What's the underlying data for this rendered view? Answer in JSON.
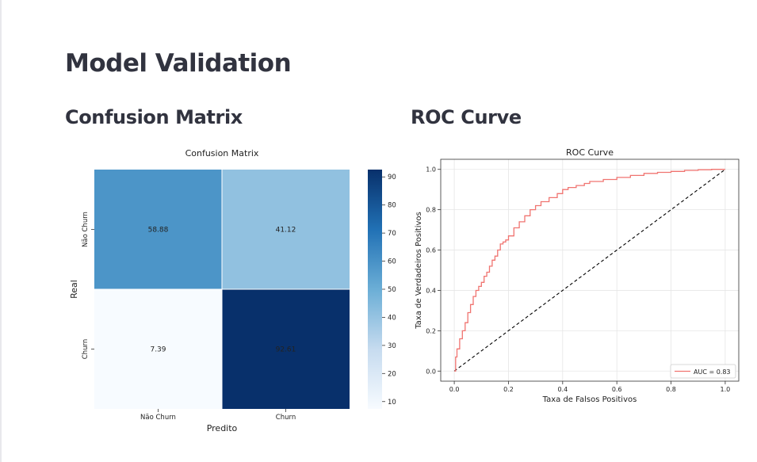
{
  "page": {
    "title": "Model Validation",
    "sections": {
      "confusion_matrix": "Confusion Matrix",
      "roc_curve": "ROC Curve"
    }
  },
  "colors": {
    "cm_low": "#f7fbff",
    "cm_high": "#08306b",
    "roc_line": "#f07470",
    "diagonal": "#000000"
  },
  "chart_data": [
    {
      "type": "heatmap",
      "title": "Confusion Matrix",
      "xlabel": "Predito",
      "ylabel": "Real",
      "x_categories": [
        "Não Churn",
        "Churn"
      ],
      "y_categories": [
        "Não Churn",
        "Churn"
      ],
      "values": [
        [
          58.88,
          41.12
        ],
        [
          7.39,
          92.61
        ]
      ],
      "colorbar": {
        "ticks": [
          10,
          20,
          30,
          40,
          50,
          60,
          70,
          80,
          90
        ],
        "range": [
          7.39,
          92.61
        ]
      }
    },
    {
      "type": "line",
      "title": "ROC Curve",
      "xlabel": "Taxa de Falsos Positivos",
      "ylabel": "Taxa de Verdadeiros Positivos",
      "xlim": [
        -0.05,
        1.05
      ],
      "ylim": [
        -0.05,
        1.05
      ],
      "xticks": [
        "0.0",
        "0.2",
        "0.4",
        "0.6",
        "0.8",
        "1.0"
      ],
      "yticks": [
        "0.0",
        "0.2",
        "0.4",
        "0.6",
        "0.8",
        "1.0"
      ],
      "grid": true,
      "legend": "lower-right",
      "series": [
        {
          "name": "AUC = 0.83",
          "x": [
            0,
            0.005,
            0.01,
            0.02,
            0.03,
            0.04,
            0.05,
            0.06,
            0.07,
            0.08,
            0.09,
            0.1,
            0.11,
            0.12,
            0.13,
            0.14,
            0.15,
            0.16,
            0.17,
            0.18,
            0.19,
            0.2,
            0.22,
            0.24,
            0.26,
            0.28,
            0.3,
            0.32,
            0.35,
            0.38,
            0.4,
            0.42,
            0.45,
            0.48,
            0.5,
            0.55,
            0.6,
            0.65,
            0.7,
            0.75,
            0.8,
            0.85,
            0.9,
            0.95,
            1.0
          ],
          "y": [
            0,
            0.07,
            0.11,
            0.16,
            0.2,
            0.24,
            0.29,
            0.33,
            0.37,
            0.4,
            0.42,
            0.44,
            0.47,
            0.49,
            0.52,
            0.55,
            0.57,
            0.6,
            0.63,
            0.64,
            0.65,
            0.67,
            0.71,
            0.74,
            0.77,
            0.8,
            0.82,
            0.84,
            0.86,
            0.88,
            0.9,
            0.91,
            0.92,
            0.93,
            0.94,
            0.95,
            0.96,
            0.97,
            0.98,
            0.985,
            0.99,
            0.995,
            0.998,
            1.0,
            1.0
          ]
        },
        {
          "x": [
            0,
            1
          ],
          "y": [
            0,
            1
          ]
        }
      ]
    }
  ]
}
